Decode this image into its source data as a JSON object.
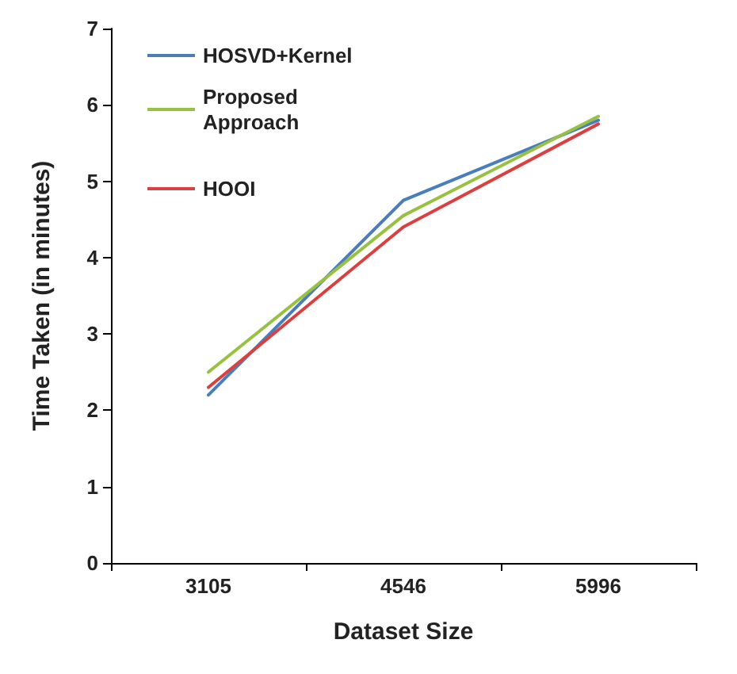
{
  "chart_data": {
    "type": "line",
    "xlabel": "Dataset Size",
    "ylabel": "Time Taken (in minutes)",
    "categories": [
      "3105",
      "4546",
      "5996"
    ],
    "series": [
      {
        "name": "HOSVD+Kernel",
        "color": "#4a7ebb",
        "values": [
          2.2,
          4.75,
          5.8
        ]
      },
      {
        "name": "Proposed Approach",
        "color": "#98c142",
        "values": [
          2.5,
          4.55,
          5.85
        ]
      },
      {
        "name": "HOOI",
        "color": "#d9403f",
        "values": [
          2.3,
          4.4,
          5.75
        ]
      }
    ],
    "ylim": [
      0,
      7
    ],
    "yticks": [
      0,
      1,
      2,
      3,
      4,
      5,
      6,
      7
    ],
    "grid": false,
    "legend": "top left",
    "marker": "none",
    "line_style": "solid"
  }
}
